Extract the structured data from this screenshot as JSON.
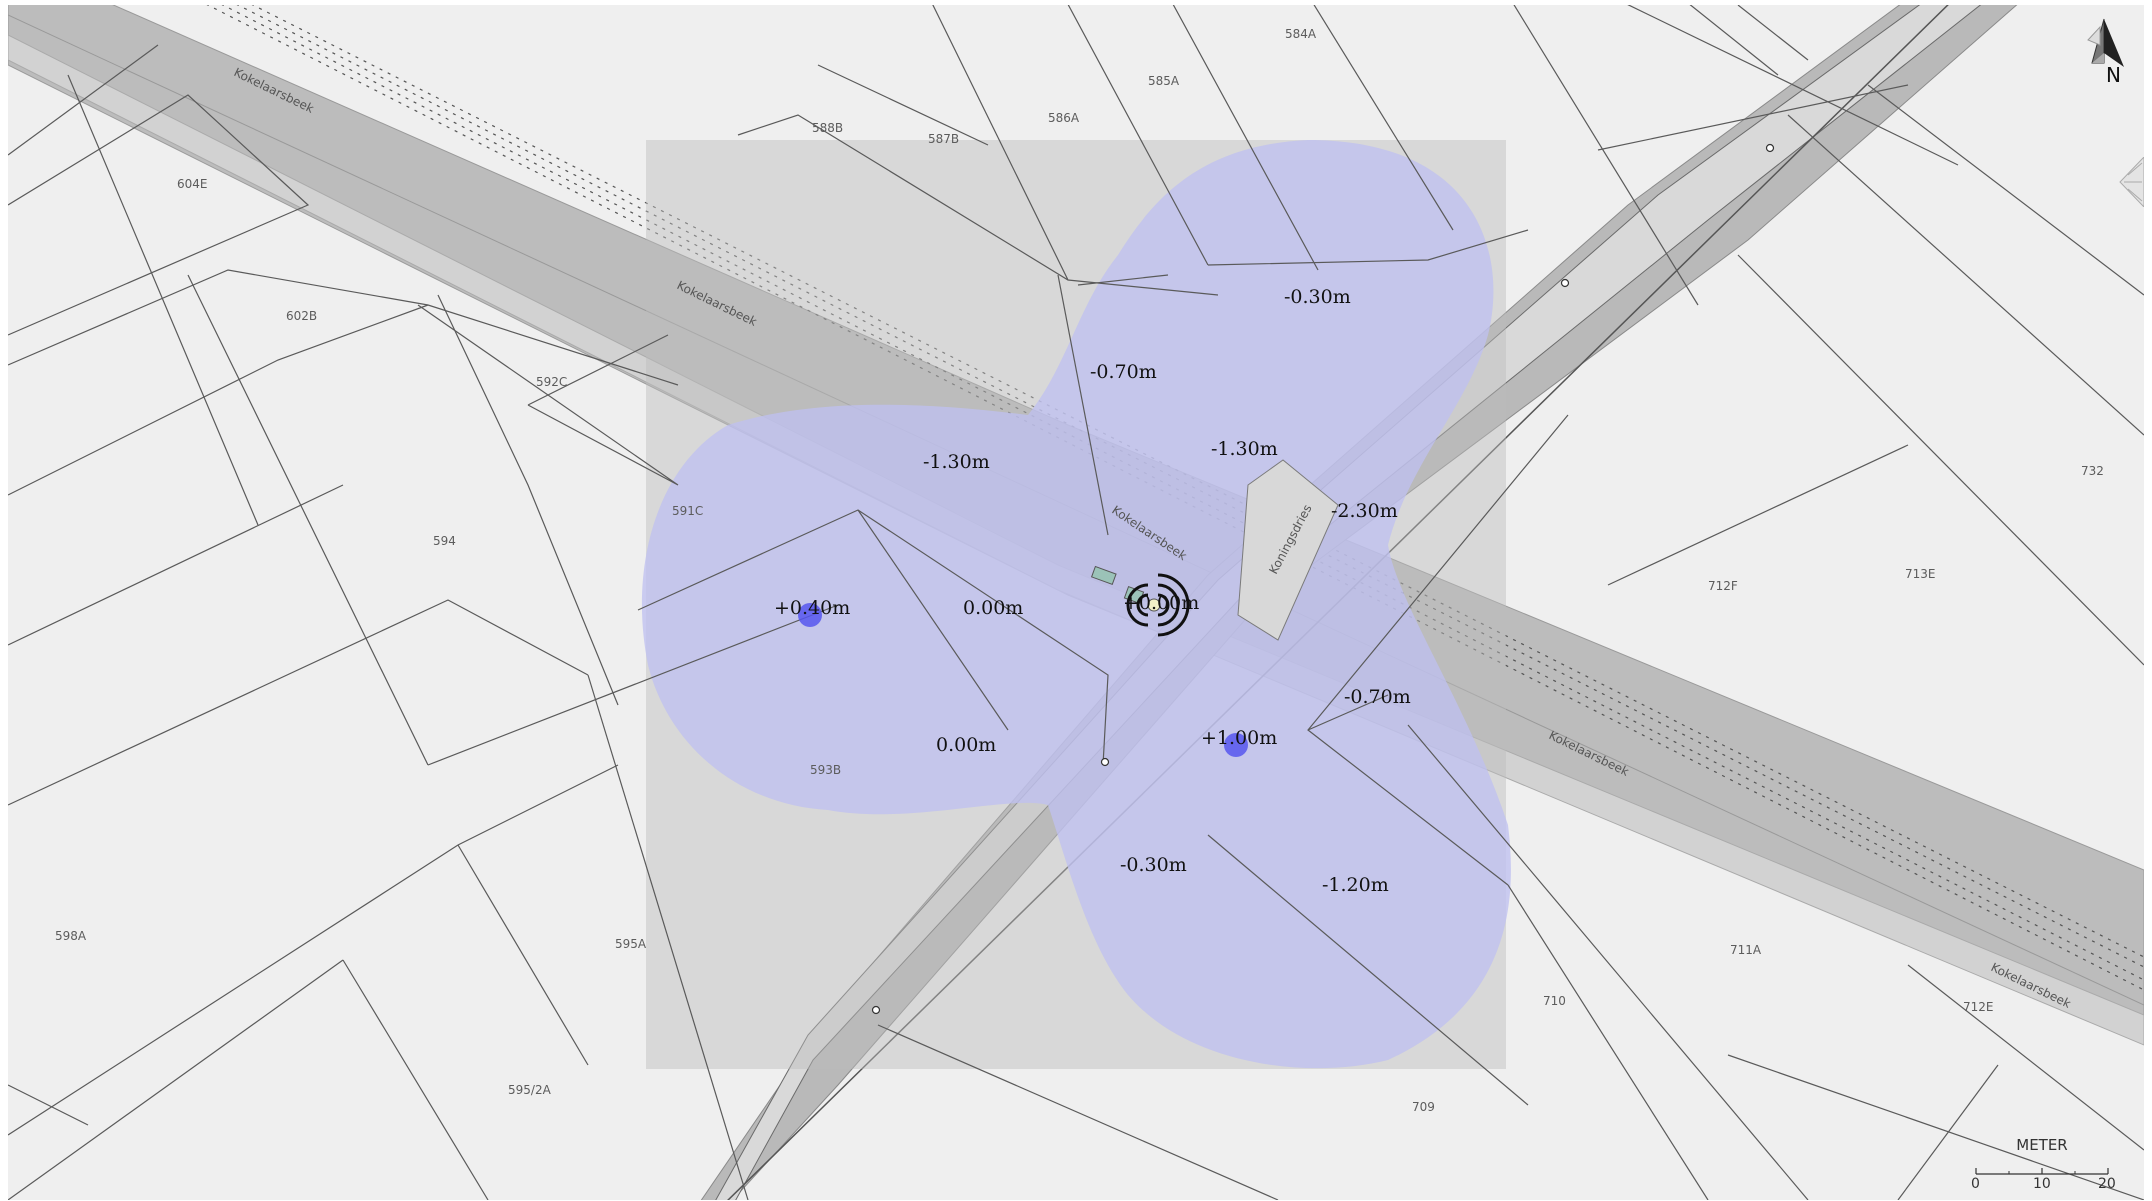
{
  "map": {
    "colors": {
      "background": "#efefef",
      "rail_corridor": "#bcbcbc",
      "analysis_area": "#d6d6d6",
      "flood_overlay": "#bfc0f0",
      "marker": "#5656ee",
      "parcel_line": "#555555"
    },
    "parcels": [
      "584A",
      "585A",
      "586A",
      "587B",
      "588B",
      "604E",
      "602B",
      "592C",
      "591C",
      "594",
      "593B",
      "598A",
      "595A",
      "595/2A",
      "709",
      "710",
      "711A",
      "712E",
      "712F",
      "713E",
      "732"
    ],
    "road_labels": [
      "Kokelaarsbeek",
      "Kokelaarsbeek",
      "Kokelaarsbeek",
      "Kokelaarsbeek",
      "Kokelaarsbeek",
      "Koningsdries"
    ],
    "depth_labels": [
      "-0.30m",
      "-0.70m",
      "-1.30m",
      "-1.30m",
      "-2.30m",
      "+0.40m",
      "0.00m",
      "+0.00m",
      "0.00m",
      "-0.70m",
      "+1.00m",
      "-0.30m",
      "-1.20m"
    ],
    "markers": [
      "observation-point",
      "observation-point"
    ],
    "north_arrow": {
      "icon": "north-arrow-icon",
      "label": "N"
    },
    "scale_bar": {
      "title": "METER",
      "ticks": [
        "0",
        "10",
        "20"
      ]
    },
    "side_tab_icon": "collapse-panel-icon"
  }
}
